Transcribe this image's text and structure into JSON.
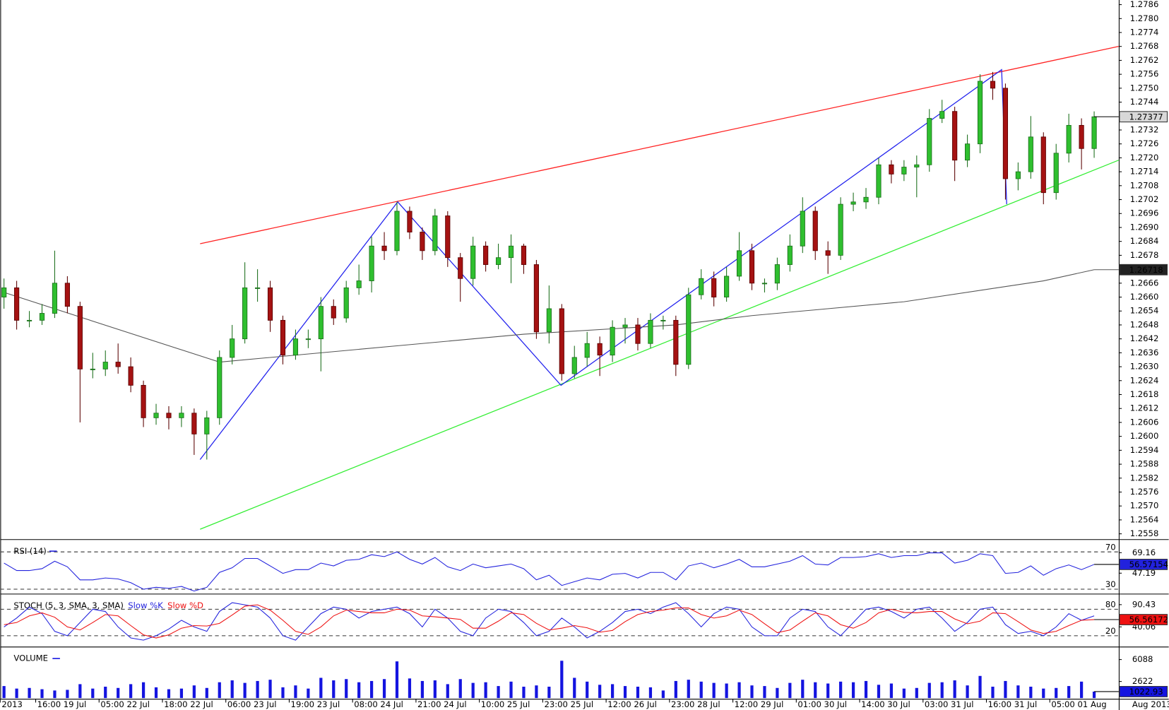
{
  "chart_data": [
    {
      "type": "candlestick",
      "open": [
        1.266,
        1.2664,
        1.265,
        1.265,
        1.2653,
        1.2666,
        1.2656,
        1.2629,
        1.2629,
        1.2632,
        1.263,
        1.2622,
        1.2608,
        1.261,
        1.2608,
        1.261,
        1.2601,
        1.2608,
        1.2634,
        1.2642,
        1.2664,
        1.2664,
        1.265,
        1.2635,
        1.2642,
        1.2642,
        1.2656,
        1.2651,
        1.2664,
        1.2667,
        1.2682,
        1.268,
        1.2697,
        1.2688,
        1.268,
        1.2695,
        1.2677,
        1.2668,
        1.2682,
        1.2674,
        1.2677,
        1.2682,
        1.2674,
        1.2645,
        1.2655,
        1.2627,
        1.2634,
        1.264,
        1.2635,
        1.2647,
        1.2648,
        1.264,
        1.265,
        1.265,
        1.2631,
        1.2661,
        1.2668,
        1.266,
        1.2669,
        1.268,
        1.2666,
        1.2666,
        1.2674,
        1.2682,
        1.2697,
        1.268,
        1.2678,
        1.27,
        1.2701,
        1.2703,
        1.2717,
        1.2713,
        1.2716,
        1.2717,
        1.2737,
        1.274,
        1.2719,
        1.2726,
        1.2753,
        1.275,
        1.2711,
        1.2714,
        1.2729,
        1.2705,
        1.2722,
        1.2734,
        1.2724
      ],
      "high": [
        1.2668,
        1.2667,
        1.2654,
        1.2657,
        1.268,
        1.2669,
        1.2658,
        1.2636,
        1.2637,
        1.264,
        1.2634,
        1.2624,
        1.2614,
        1.2613,
        1.2613,
        1.2612,
        1.2611,
        1.2637,
        1.2648,
        1.2675,
        1.2672,
        1.2667,
        1.2652,
        1.2646,
        1.2646,
        1.266,
        1.2659,
        1.2667,
        1.2674,
        1.2686,
        1.2688,
        1.2701,
        1.2699,
        1.269,
        1.2698,
        1.2697,
        1.2679,
        1.2686,
        1.2684,
        1.2683,
        1.2687,
        1.2683,
        1.2676,
        1.2665,
        1.2657,
        1.2639,
        1.2645,
        1.2643,
        1.265,
        1.2651,
        1.2651,
        1.2653,
        1.2652,
        1.2652,
        1.2664,
        1.2672,
        1.2671,
        1.2673,
        1.2688,
        1.2683,
        1.2668,
        1.2677,
        1.2687,
        1.2703,
        1.2699,
        1.2684,
        1.2703,
        1.2705,
        1.2707,
        1.272,
        1.2719,
        1.2719,
        1.2721,
        1.2741,
        1.2745,
        1.2742,
        1.273,
        1.2756,
        1.2757,
        1.2752,
        1.2718,
        1.2738,
        1.2731,
        1.2726,
        1.2739,
        1.2737,
        1.274
      ],
      "low": [
        1.2655,
        1.2646,
        1.2647,
        1.2648,
        1.2651,
        1.2653,
        1.2606,
        1.2625,
        1.2626,
        1.2627,
        1.2619,
        1.2604,
        1.2605,
        1.2603,
        1.2604,
        1.2592,
        1.259,
        1.2605,
        1.2631,
        1.264,
        1.2658,
        1.2645,
        1.2631,
        1.2633,
        1.2638,
        1.2628,
        1.2648,
        1.2649,
        1.2661,
        1.2662,
        1.2676,
        1.2678,
        1.2685,
        1.2676,
        1.2678,
        1.2673,
        1.2658,
        1.2665,
        1.2671,
        1.2672,
        1.2666,
        1.267,
        1.2642,
        1.264,
        1.2624,
        1.2625,
        1.263,
        1.2626,
        1.2632,
        1.264,
        1.2637,
        1.2638,
        1.2646,
        1.2626,
        1.2629,
        1.2659,
        1.2656,
        1.2658,
        1.2667,
        1.2663,
        1.2662,
        1.2663,
        1.2671,
        1.2679,
        1.2676,
        1.267,
        1.2676,
        1.2697,
        1.2698,
        1.27,
        1.2709,
        1.271,
        1.2703,
        1.2714,
        1.2735,
        1.271,
        1.2716,
        1.2722,
        1.2745,
        1.2702,
        1.2706,
        1.2711,
        1.27,
        1.2702,
        1.2718,
        1.2715,
        1.272
      ],
      "close": [
        1.2664,
        1.265,
        1.265,
        1.2653,
        1.2666,
        1.2656,
        1.2629,
        1.2629,
        1.2632,
        1.263,
        1.2622,
        1.2608,
        1.261,
        1.2608,
        1.261,
        1.2601,
        1.2608,
        1.2634,
        1.2642,
        1.2664,
        1.2664,
        1.265,
        1.2635,
        1.2642,
        1.2642,
        1.2656,
        1.2651,
        1.2664,
        1.2667,
        1.2682,
        1.268,
        1.2697,
        1.2688,
        1.268,
        1.2695,
        1.2677,
        1.2668,
        1.2682,
        1.2674,
        1.2677,
        1.2682,
        1.2674,
        1.2645,
        1.2655,
        1.2627,
        1.2634,
        1.264,
        1.2635,
        1.2647,
        1.2648,
        1.264,
        1.265,
        1.265,
        1.2631,
        1.2661,
        1.2668,
        1.266,
        1.2669,
        1.268,
        1.2666,
        1.2666,
        1.2674,
        1.2682,
        1.2697,
        1.268,
        1.2678,
        1.27,
        1.2701,
        1.2703,
        1.2717,
        1.2713,
        1.2716,
        1.2717,
        1.2737,
        1.274,
        1.2719,
        1.2726,
        1.2753,
        1.275,
        1.2711,
        1.2714,
        1.2729,
        1.2705,
        1.2722,
        1.2734,
        1.2724,
        1.27377
      ],
      "up_color": "#2fbf2f",
      "down_color": "#a51212",
      "moving_average": {
        "color": "#555555",
        "x": [
          0,
          17,
          31,
          41,
          53,
          59,
          71,
          82,
          86
        ],
        "values": [
          1.2662,
          1.2632,
          1.2639,
          1.2644,
          1.2648,
          1.2652,
          1.2658,
          1.2667,
          1.26718
        ]
      },
      "trendlines": [
        {
          "color": "#ff2020",
          "x": [
            15.47,
            87.94
          ],
          "values": [
            1.2683,
            1.2768
          ]
        },
        {
          "color": "#33ee33",
          "x": [
            15.47,
            87.94
          ],
          "values": [
            1.256,
            1.2719
          ]
        },
        {
          "color": "#2222ee",
          "x": [
            15.47,
            31.06,
            43.94,
            78.7,
            79.1
          ],
          "values": [
            1.259,
            1.2701,
            1.2622,
            1.2758,
            1.27
          ]
        }
      ],
      "ylim": [
        1.2556,
        1.2788
      ],
      "yticks": [
        1.2786,
        {
          "value": 1.278,
          "label": "1.2780"
        },
        1.2774,
        1.2768,
        1.2762,
        1.2756,
        {
          "value": 1.275,
          "label": "1.2750"
        },
        1.2744,
        1.2732,
        1.2726,
        {
          "value": 1.272,
          "label": "1.2720"
        },
        1.2714,
        1.2708,
        1.2702,
        1.2696,
        {
          "value": 1.269,
          "label": "1.2690"
        },
        1.2684,
        1.2678,
        1.2666,
        {
          "value": 1.266,
          "label": "1.2660"
        },
        1.2654,
        1.2648,
        1.2642,
        1.2636,
        {
          "value": 1.263,
          "label": "1.2630"
        },
        1.2624,
        1.2618,
        1.2612,
        1.2606,
        {
          "value": 1.26,
          "label": "1.2600"
        },
        1.2594,
        1.2588,
        1.2582,
        1.2576,
        {
          "value": 1.257,
          "label": "1.2570"
        },
        1.2564,
        1.2558
      ],
      "xticks": [
        {
          "value": -0.3,
          "label": "2013"
        },
        {
          "value": 2.5,
          "label": "16:00 19 Jul"
        },
        {
          "value": 7.5,
          "label": "05:00 22 Jul"
        },
        {
          "value": 12.5,
          "label": "18:00 22 Jul"
        },
        {
          "value": 17.5,
          "label": "06:00 23 Jul"
        },
        {
          "value": 22.5,
          "label": "19:00 23 Jul"
        },
        {
          "value": 27.5,
          "label": "08:00 24 Jul"
        },
        {
          "value": 32.5,
          "label": "21:00 24 Jul"
        },
        {
          "value": 37.5,
          "label": "10:00 25 Jul"
        },
        {
          "value": 42.5,
          "label": "23:00 25 Jul"
        },
        {
          "value": 47.5,
          "label": "12:00 26 Jul"
        },
        {
          "value": 52.5,
          "label": "23:00 28 Jul"
        },
        {
          "value": 57.5,
          "label": "12:00 29 Jul"
        },
        {
          "value": 62.5,
          "label": "01:00 30 Jul"
        },
        {
          "value": 67.5,
          "label": "14:00 30 Jul"
        },
        {
          "value": 72.5,
          "label": "03:00 31 Jul"
        },
        {
          "value": 77.5,
          "label": "16:00 31 Jul"
        },
        {
          "value": 82.5,
          "label": "05:00 01 Aug"
        }
      ],
      "x_end_label": "Aug 2013"
    },
    {
      "type": "line",
      "title": "RSI (14)",
      "series": [
        {
          "color": "#2222dd",
          "values": [
            58,
            50,
            50,
            52,
            60,
            54,
            40,
            40,
            42,
            41,
            37,
            30,
            32,
            31,
            33,
            28,
            32,
            48,
            53,
            63,
            63,
            55,
            47,
            51,
            51,
            58,
            55,
            61,
            62,
            67,
            65,
            70,
            62,
            57,
            64,
            54,
            50,
            57,
            53,
            55,
            57,
            52,
            40,
            45,
            34,
            38,
            42,
            40,
            46,
            47,
            42,
            48,
            48,
            40,
            55,
            58,
            53,
            57,
            62,
            54,
            54,
            57,
            60,
            66,
            57,
            56,
            64,
            64,
            65,
            68,
            64,
            66,
            66,
            69,
            69,
            58,
            61,
            68,
            66,
            47,
            48,
            55,
            45,
            52,
            56,
            51,
            56.57154
          ]
        }
      ],
      "ylim": [
        26,
        82
      ],
      "levels": [
        70,
        30
      ],
      "yticks": [
        69.16,
        47.19
      ]
    },
    {
      "type": "line",
      "title": "STOCH (5, 3, SMA, 3, SMA)",
      "series": [
        {
          "name": "Slow %K",
          "color": "#2222dd",
          "values": [
            40,
            60,
            85,
            70,
            30,
            20,
            50,
            80,
            75,
            40,
            15,
            10,
            20,
            35,
            55,
            40,
            30,
            75,
            95,
            90,
            85,
            60,
            20,
            10,
            40,
            70,
            85,
            80,
            60,
            75,
            80,
            85,
            70,
            40,
            80,
            60,
            30,
            20,
            60,
            80,
            75,
            50,
            20,
            30,
            60,
            40,
            15,
            30,
            50,
            75,
            80,
            70,
            85,
            95,
            70,
            40,
            70,
            85,
            80,
            40,
            20,
            20,
            60,
            80,
            75,
            40,
            20,
            50,
            80,
            85,
            75,
            60,
            80,
            85,
            60,
            30,
            50,
            80,
            85,
            45,
            25,
            30,
            20,
            40,
            70,
            55,
            65
          ]
        },
        {
          "name": "Slow %D",
          "color": "#ee1111",
          "values": [
            45,
            50,
            65,
            72,
            62,
            40,
            33,
            50,
            68,
            65,
            43,
            22,
            15,
            22,
            37,
            43,
            42,
            48,
            67,
            87,
            90,
            78,
            55,
            30,
            23,
            40,
            65,
            78,
            75,
            72,
            72,
            80,
            78,
            65,
            63,
            60,
            57,
            37,
            37,
            53,
            72,
            68,
            48,
            33,
            37,
            43,
            38,
            28,
            32,
            52,
            68,
            75,
            78,
            83,
            83,
            68,
            60,
            65,
            78,
            68,
            47,
            27,
            33,
            53,
            72,
            65,
            45,
            37,
            50,
            72,
            80,
            73,
            72,
            75,
            75,
            58,
            47,
            53,
            72,
            70,
            52,
            33,
            25,
            30,
            43,
            55,
            56.56172
          ]
        }
      ],
      "ylim": [
        -3,
        112
      ],
      "levels": [
        80,
        20
      ],
      "yticks": [
        90.43,
        40.06
      ]
    },
    {
      "type": "bar",
      "title": "VOLUME",
      "color": "#1414e0",
      "values": [
        1900,
        1500,
        1600,
        1400,
        1200,
        1300,
        2200,
        1500,
        1800,
        1600,
        2200,
        2500,
        1700,
        1400,
        1500,
        2000,
        1600,
        2500,
        2800,
        2400,
        2700,
        2900,
        1700,
        2000,
        1500,
        3200,
        2800,
        3000,
        2500,
        2700,
        3000,
        5800,
        3100,
        2700,
        2800,
        2200,
        3000,
        2400,
        2500,
        1900,
        2600,
        1800,
        2000,
        1800,
        5900,
        3200,
        2600,
        2100,
        2200,
        1900,
        1800,
        1700,
        1200,
        2700,
        2900,
        2600,
        2400,
        2300,
        2500,
        2000,
        1900,
        1600,
        2400,
        2900,
        2500,
        2300,
        2600,
        2500,
        2700,
        2100,
        2300,
        1500,
        1600,
        2400,
        2500,
        2800,
        2000,
        3500,
        1800,
        2700,
        2000,
        1800,
        1500,
        1600,
        1900,
        2600,
        1022.93
      ],
      "ylim": [
        0,
        7900
      ],
      "yticks": [
        2622,
        6088
      ]
    }
  ]
}
